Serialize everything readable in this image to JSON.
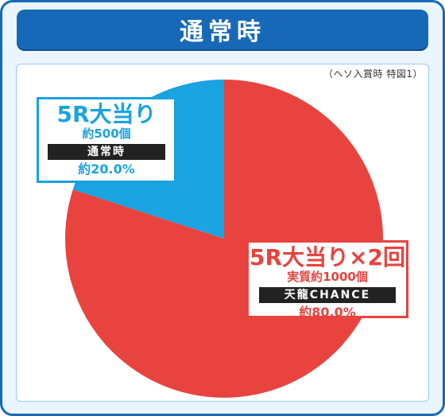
{
  "header": {
    "title": "通常時"
  },
  "note": "（ヘソ入賞時 特図1）",
  "chart_data": {
    "type": "pie",
    "title": "通常時",
    "slices": [
      {
        "label": "5R大当り×2回",
        "sub": "実質約1000個",
        "tag": "天龍CHANCE",
        "value": 80.0,
        "value_label": "約80.0%",
        "color": "#e8433f"
      },
      {
        "label": "5R大当り",
        "sub": "約500個",
        "tag": "通常時",
        "value": 20.0,
        "value_label": "約20.0%",
        "color": "#19a3e0"
      }
    ]
  }
}
